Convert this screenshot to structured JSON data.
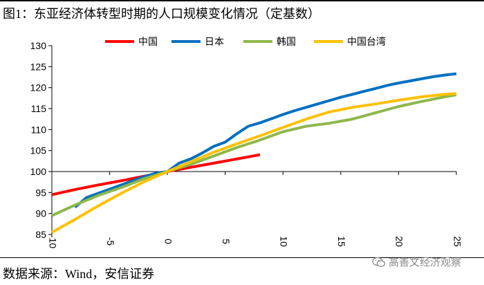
{
  "title": "图1：东亚经济体转型时期的人口规模变化情况（定基数）",
  "source": "数据来源：Wind，安信证券",
  "watermark": "高善文经济观察",
  "chart_data": {
    "type": "line",
    "title": "图1：东亚经济体转型时期的人口规模变化情况（定基数）",
    "xlabel": "",
    "ylabel": "",
    "xlim": [
      -10,
      25
    ],
    "ylim": [
      85,
      130
    ],
    "xticks": [
      -10,
      -5,
      0,
      5,
      10,
      15,
      20,
      25
    ],
    "yticks": [
      85,
      90,
      95,
      100,
      105,
      110,
      115,
      120,
      125,
      130
    ],
    "grid": false,
    "legend_position": "top",
    "series": [
      {
        "name": "中国",
        "color": "#ff0000",
        "x": [
          -10,
          -8,
          -6,
          -4,
          -2,
          0,
          2,
          4,
          6,
          8
        ],
        "y": [
          94.5,
          95.7,
          96.8,
          97.8,
          98.9,
          100.0,
          101.0,
          102.0,
          103.0,
          104.0
        ]
      },
      {
        "name": "日本",
        "color": "#0070c0",
        "x": [
          -8,
          -7,
          -6,
          -5,
          -4,
          -3,
          -2,
          -1,
          0,
          1,
          2,
          3,
          4,
          5,
          6,
          7,
          8,
          9,
          10,
          11,
          12,
          13,
          14,
          15,
          16,
          17,
          18,
          19,
          20,
          21,
          22,
          23,
          24,
          25
        ],
        "y": [
          91.5,
          93.8,
          94.8,
          95.8,
          96.8,
          97.8,
          98.8,
          99.6,
          100.0,
          102.0,
          103.0,
          104.4,
          106.0,
          107.0,
          109.0,
          110.8,
          111.6,
          112.6,
          113.6,
          114.5,
          115.3,
          116.1,
          116.9,
          117.7,
          118.4,
          119.1,
          119.8,
          120.5,
          121.1,
          121.6,
          122.1,
          122.6,
          123.0,
          123.3
        ]
      },
      {
        "name": "韩国",
        "color": "#8db84a",
        "x": [
          -10,
          -8,
          -6,
          -4,
          -2,
          0,
          2,
          4,
          6,
          8,
          10,
          12,
          14,
          16,
          18,
          20,
          22,
          24,
          25
        ],
        "y": [
          89.5,
          92.0,
          94.3,
          96.2,
          98.3,
          100.0,
          101.7,
          103.7,
          105.7,
          107.5,
          109.5,
          110.8,
          111.5,
          112.5,
          114.0,
          115.5,
          116.7,
          117.8,
          118.3
        ]
      },
      {
        "name": "中国台湾",
        "color": "#ffc000",
        "x": [
          -10,
          -8,
          -6,
          -4,
          -2,
          0,
          2,
          4,
          6,
          8,
          10,
          12,
          14,
          16,
          18,
          20,
          22,
          24,
          25
        ],
        "y": [
          85.5,
          88.6,
          91.8,
          94.8,
          97.6,
          100.0,
          102.3,
          104.6,
          106.6,
          108.5,
          110.5,
          112.5,
          114.2,
          115.3,
          116.1,
          117.0,
          117.8,
          118.4,
          118.6
        ]
      }
    ]
  }
}
